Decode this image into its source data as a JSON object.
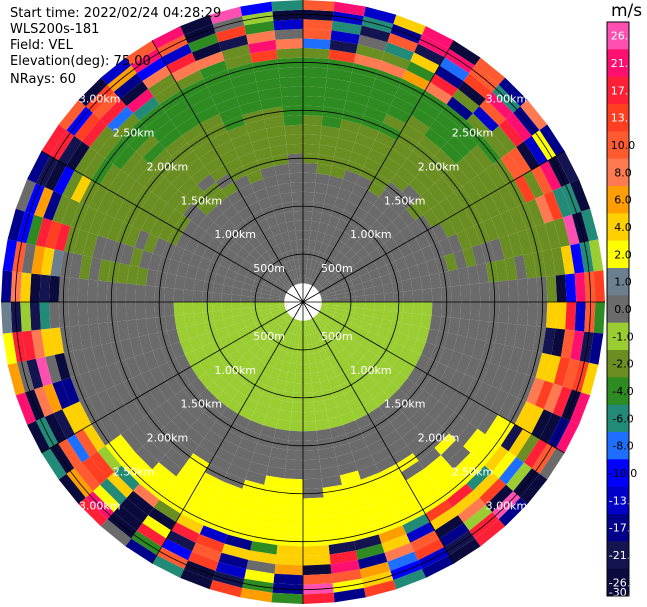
{
  "header": {
    "start_time": "Start time: 2022/02/24 04:28:29",
    "instrument": "WLS200s-181",
    "field": "Field: VEL",
    "elevation": "Elevation(deg): 75.00",
    "nrays": "NRays: 60"
  },
  "colorbar": {
    "unit": "m/s",
    "ticks": [
      "26.0",
      "21.0",
      "17.0",
      "13.0",
      "10.0",
      "8.0",
      "6.0",
      "4.0",
      "2.0",
      "1.0",
      "0.0",
      "-1.0",
      "-2.0",
      "-4.0",
      "-6.0",
      "-8.0",
      "-10.0",
      "-13.0",
      "-17.0",
      "-21.0",
      "-26.0",
      "-30.0"
    ],
    "colors": [
      "#ff66cc",
      "#ff33aa",
      "#ff0066",
      "#ff3344",
      "#ff4422",
      "#ff6633",
      "#ff9900",
      "#ffcc00",
      "#ffff00",
      "#99cc33",
      "#6b8e23",
      "#228b22",
      "#228b6b",
      "#1e90ff",
      "#0000ff",
      "#0000cc",
      "#00008b",
      "#191970",
      "#000066",
      "#000044",
      "#ffffff",
      "#808080",
      "#708090",
      "#9acd32"
    ]
  },
  "chart_data": {
    "type": "polar-ppi",
    "range_rings": [
      "500m",
      "1.00km",
      "1.50km",
      "2.00km",
      "2.50km",
      "3.00km"
    ],
    "ring_distances_km": [
      0.5,
      1.0,
      1.5,
      2.0,
      2.5,
      3.0
    ],
    "max_range_km": 3.15,
    "gate_start_km": 0.05,
    "gate_step_km": 0.1,
    "nrays": 60,
    "scale": [
      {
        "value": 26.0,
        "color": "#ff4fb0"
      },
      {
        "value": 21.0,
        "color": "#ff1070"
      },
      {
        "value": 17.0,
        "color": "#ff2038"
      },
      {
        "value": 13.0,
        "color": "#ff3e22"
      },
      {
        "value": 10.0,
        "color": "#ff5a30"
      },
      {
        "value": 8.0,
        "color": "#ff7a50"
      },
      {
        "value": 6.0,
        "color": "#ff9e00"
      },
      {
        "value": 4.0,
        "color": "#ffd000"
      },
      {
        "value": 2.0,
        "color": "#ffff00"
      },
      {
        "value": 1.0,
        "color": "#6c7f8f"
      },
      {
        "value": 0.0,
        "color": "#6b6b6b"
      },
      {
        "value": -1.0,
        "color": "#9acd32"
      },
      {
        "value": -2.0,
        "color": "#6b8e23"
      },
      {
        "value": -4.0,
        "color": "#2e8b22"
      },
      {
        "value": -6.0,
        "color": "#228b77"
      },
      {
        "value": -8.0,
        "color": "#1e6fff"
      },
      {
        "value": -10.0,
        "color": "#0000ff"
      },
      {
        "value": -13.0,
        "color": "#0000c8"
      },
      {
        "value": -17.0,
        "color": "#00008b"
      },
      {
        "value": -21.0,
        "color": "#141450"
      },
      {
        "value": -26.0,
        "color": "#0a0a3c"
      }
    ]
  }
}
